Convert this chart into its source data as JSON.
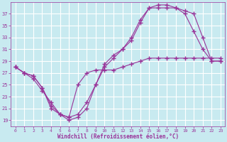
{
  "background_color": "#c8eaf0",
  "grid_color": "#ffffff",
  "line_color": "#993399",
  "marker": "+",
  "marker_size": 4,
  "marker_lw": 1.0,
  "xlabel": "Windchill (Refroidissement éolien,°C)",
  "xlabel_color": "#993399",
  "tick_color": "#993399",
  "xlim": [
    -0.5,
    23.5
  ],
  "ylim": [
    18,
    39
  ],
  "yticks": [
    19,
    21,
    23,
    25,
    27,
    29,
    31,
    33,
    35,
    37
  ],
  "xticks": [
    0,
    1,
    2,
    3,
    4,
    5,
    6,
    7,
    8,
    9,
    10,
    11,
    12,
    13,
    14,
    15,
    16,
    17,
    18,
    19,
    20,
    21,
    22,
    23
  ],
  "line1_x": [
    0,
    1,
    2,
    3,
    4,
    5,
    6,
    7,
    8,
    9,
    10,
    11,
    12,
    13,
    14,
    15,
    16,
    17,
    18,
    19,
    20,
    21,
    22,
    23
  ],
  "line1_y": [
    28,
    27,
    26,
    24,
    22,
    20,
    19,
    19.5,
    21,
    25,
    28,
    29.5,
    31,
    33,
    36,
    38,
    38,
    38,
    38,
    37,
    34,
    31,
    29,
    29
  ],
  "line2_x": [
    0,
    1,
    2,
    3,
    4,
    5,
    6,
    7,
    8,
    9,
    10,
    11,
    12,
    13,
    14,
    15,
    16,
    17,
    18,
    19,
    20,
    21,
    22,
    23
  ],
  "line2_y": [
    28,
    27,
    26.5,
    24.5,
    21,
    20,
    19.5,
    20,
    22,
    25,
    28.5,
    30,
    31,
    32.5,
    35.5,
    38,
    38.5,
    38.5,
    38,
    37.5,
    37,
    33,
    29,
    29
  ],
  "line3_x": [
    0,
    1,
    2,
    3,
    4,
    5,
    6,
    7,
    8,
    9,
    10,
    11,
    12,
    13,
    14,
    15,
    16,
    17,
    18,
    19,
    20,
    21,
    22,
    23
  ],
  "line3_y": [
    28,
    27,
    26.5,
    24.5,
    21.5,
    20,
    19.5,
    25,
    27,
    27.5,
    27.5,
    27.5,
    28,
    28.5,
    29,
    29.5,
    29.5,
    29.5,
    29.5,
    29.5,
    29.5,
    29.5,
    29.5,
    29.5
  ]
}
